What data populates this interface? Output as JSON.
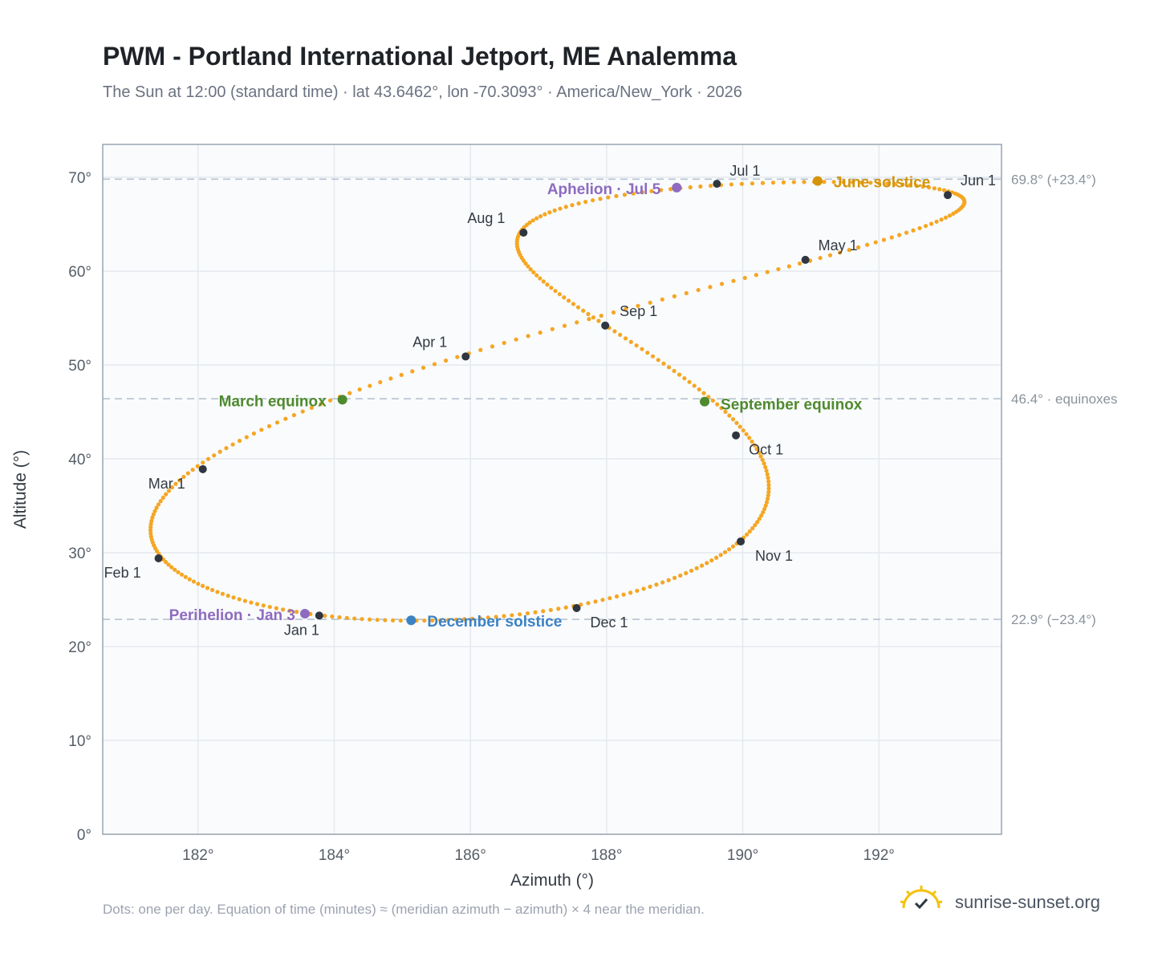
{
  "header": {
    "title": "PWM - Portland International Jetport, ME Analemma",
    "subtitle": "The Sun at 12:00 (standard time) · lat 43.6462°, lon -70.3093° · America/New_York · 2026"
  },
  "footer": {
    "note": "Dots: one per day. Equation of time (minutes) ≈ (meridian azimuth − azimuth) × 4 near the meridian.",
    "brand": "sunrise-sunset.org"
  },
  "colors": {
    "curve": "#f5a623",
    "month_dot": "#2f3640",
    "june_solstice": "#d4940a",
    "december_solstice": "#3b82c4",
    "equinox": "#4f8a2e",
    "apsis": "#8e6bbf",
    "grid": "#e5e9ef",
    "ref_line": "#b8c4d0",
    "axis_text": "#555d66"
  },
  "chart_data": {
    "type": "scatter",
    "xlabel": "Azimuth (°)",
    "ylabel": "Altitude (°)",
    "xlim": [
      180.6,
      193.8
    ],
    "ylim": [
      0,
      73.5
    ],
    "xticks": [
      182,
      184,
      186,
      188,
      190,
      192
    ],
    "xtick_labels": [
      "182°",
      "184°",
      "186°",
      "188°",
      "190°",
      "192°"
    ],
    "yticks": [
      0,
      10,
      20,
      30,
      40,
      50,
      60,
      70
    ],
    "ytick_labels": [
      "0°",
      "10°",
      "20°",
      "30°",
      "40°",
      "50°",
      "60°",
      "70°"
    ],
    "grid": true,
    "reference_lines": [
      {
        "y": 69.8,
        "label": "69.8° (+23.4°)"
      },
      {
        "y": 46.4,
        "label": "46.4° · equinoxes"
      },
      {
        "y": 22.9,
        "label": "22.9° (−23.4°)"
      }
    ],
    "months": [
      {
        "label": "Jan 1",
        "az": 183.78,
        "alt": 23.3
      },
      {
        "label": "Feb 1",
        "az": 181.42,
        "alt": 29.4
      },
      {
        "label": "Mar 1",
        "az": 182.07,
        "alt": 38.9
      },
      {
        "label": "Apr 1",
        "az": 185.93,
        "alt": 50.9
      },
      {
        "label": "May 1",
        "az": 190.92,
        "alt": 61.2
      },
      {
        "label": "Jun 1",
        "az": 193.01,
        "alt": 68.1
      },
      {
        "label": "Jul 1",
        "az": 189.62,
        "alt": 69.3
      },
      {
        "label": "Aug 1",
        "az": 186.78,
        "alt": 64.1
      },
      {
        "label": "Sep 1",
        "az": 187.98,
        "alt": 54.2
      },
      {
        "label": "Oct 1",
        "az": 189.9,
        "alt": 42.5
      },
      {
        "label": "Nov 1",
        "az": 189.97,
        "alt": 31.2
      },
      {
        "label": "Dec 1",
        "az": 187.56,
        "alt": 24.1
      }
    ],
    "events": [
      {
        "label": "Perihelion · Jan 3",
        "az": 183.57,
        "alt": 23.5,
        "kind": "apsis"
      },
      {
        "label": "March equinox",
        "az": 184.12,
        "alt": 46.3,
        "kind": "equinox"
      },
      {
        "label": "June solstice",
        "az": 191.1,
        "alt": 69.6,
        "kind": "june_solstice"
      },
      {
        "label": "Aphelion · Jul 5",
        "az": 189.03,
        "alt": 68.9,
        "kind": "apsis"
      },
      {
        "label": "September equinox",
        "az": 189.44,
        "alt": 46.1,
        "kind": "equinox"
      },
      {
        "label": "December solstice",
        "az": 185.13,
        "alt": 22.8,
        "kind": "december_solstice"
      }
    ]
  }
}
